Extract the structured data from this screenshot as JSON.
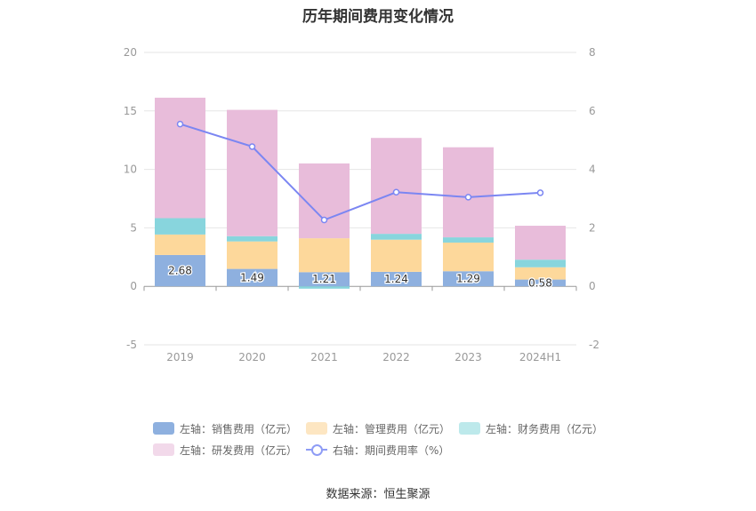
{
  "title": "历年期间费用变化情况",
  "source": "数据来源：恒生聚源",
  "colors": {
    "sales": "#8eb0df",
    "admin": "#fdd89b",
    "finance": "#88d5dd",
    "rd": "#e8bcda",
    "rate": "#7b86f2",
    "legend_sales": "#8eb0df",
    "legend_admin": "#fde6c2",
    "legend_finance": "#bde9eb",
    "legend_rd": "#f2d9ea"
  },
  "legend": [
    {
      "label": "左轴：销售费用（亿元）",
      "color_key": "legend_sales",
      "kind": "box"
    },
    {
      "label": "左轴：管理费用（亿元）",
      "color_key": "legend_admin",
      "kind": "box"
    },
    {
      "label": "左轴：财务费用（亿元）",
      "color_key": "legend_finance",
      "kind": "box"
    },
    {
      "label": "左轴：研发费用（亿元）",
      "color_key": "legend_rd",
      "kind": "box"
    },
    {
      "label": "右轴：期间费用率（%）",
      "color_key": "rate",
      "kind": "line"
    }
  ],
  "chart_data": {
    "type": "bar",
    "stacked": true,
    "categories": [
      "2019",
      "2020",
      "2021",
      "2022",
      "2023",
      "2024H1"
    ],
    "left_axis": {
      "ylim": [
        -5,
        20
      ],
      "ticks": [
        "-5",
        "0",
        "5",
        "10",
        "15",
        "20"
      ]
    },
    "right_axis": {
      "ylim": [
        -2,
        8
      ],
      "ticks": [
        "-2",
        "0",
        "2",
        "4",
        "6",
        "8"
      ]
    },
    "grid": true,
    "legend_position": "bottom",
    "series": [
      {
        "name": "左轴：销售费用（亿元）",
        "axis": "left",
        "type": "bar",
        "color_key": "sales",
        "values": [
          2.68,
          1.49,
          1.21,
          1.24,
          1.29,
          0.58
        ],
        "labels": [
          "2.68",
          "1.49",
          "1.21",
          "1.24",
          "1.29",
          "0.58"
        ]
      },
      {
        "name": "左轴：管理费用（亿元）",
        "axis": "left",
        "type": "bar",
        "color_key": "admin",
        "values": [
          1.75,
          2.35,
          2.9,
          2.75,
          2.45,
          1.05
        ]
      },
      {
        "name": "左轴：财务费用（亿元）",
        "axis": "left",
        "type": "bar",
        "color_key": "finance",
        "values": [
          1.4,
          0.45,
          -0.2,
          0.5,
          0.45,
          0.65
        ]
      },
      {
        "name": "左轴：研发费用（亿元）",
        "axis": "left",
        "type": "bar",
        "color_key": "rd",
        "values": [
          10.3,
          10.8,
          6.4,
          8.2,
          7.7,
          2.9
        ]
      },
      {
        "name": "右轴：期间费用率（%）",
        "axis": "right",
        "type": "line",
        "color_key": "rate",
        "values": [
          5.55,
          4.78,
          2.27,
          3.22,
          3.05,
          3.2
        ]
      }
    ]
  }
}
